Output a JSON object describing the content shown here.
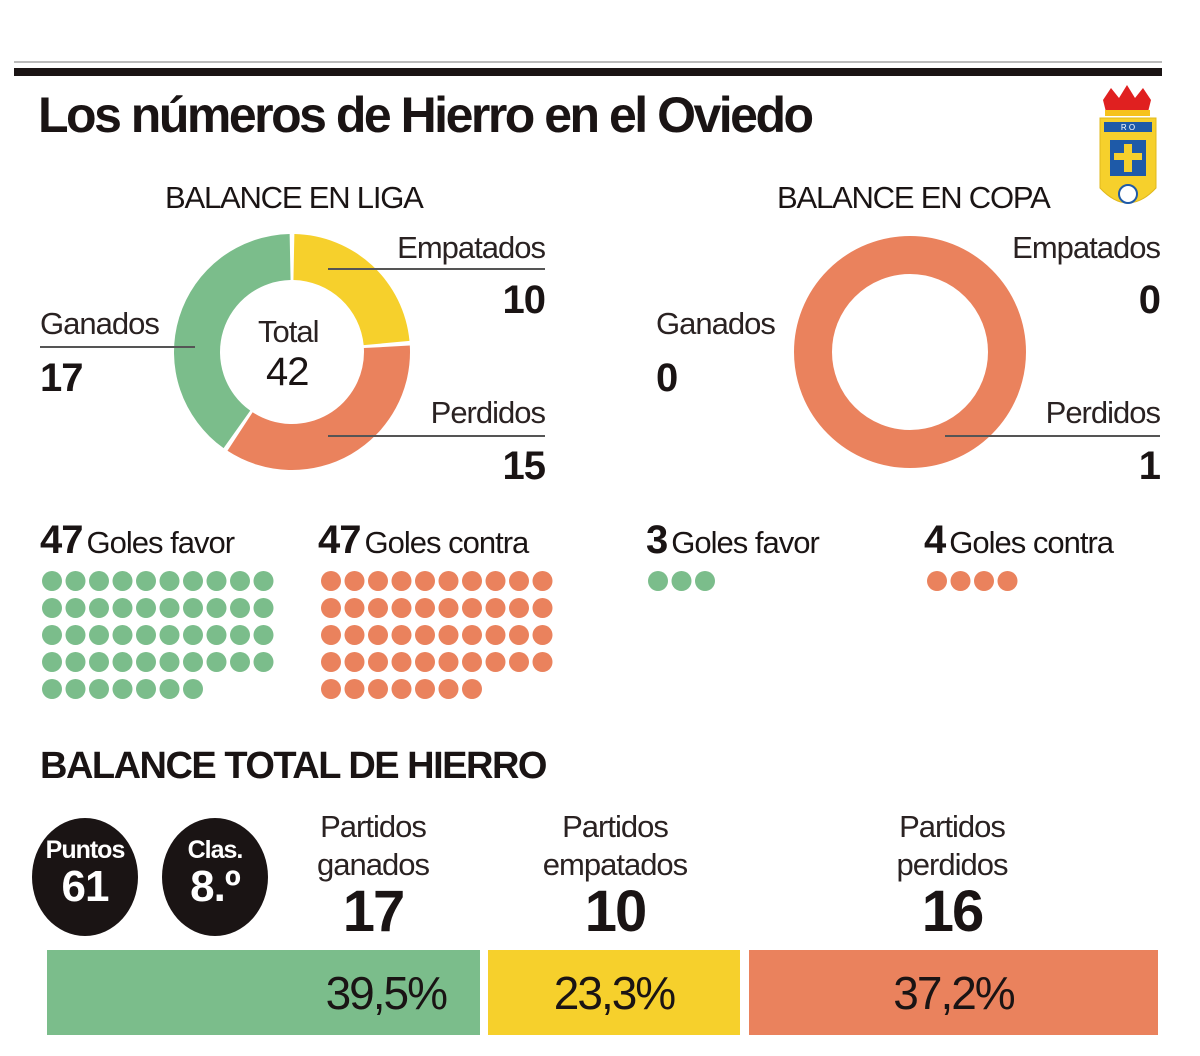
{
  "title": "Los números de Hierro en el Oviedo",
  "crest": {
    "text": "RO",
    "name": "Real Oviedo crest"
  },
  "colors": {
    "ganados": "#7bbd8b",
    "empatados": "#f6d02c",
    "perdidos": "#ea825d",
    "dark": "#1a1414"
  },
  "chart_data": [
    {
      "type": "pie",
      "title": "BALANCE EN LIGA",
      "center_label": "Total",
      "center_value": "42",
      "slices": [
        {
          "label": "Empatados",
          "value": 10
        },
        {
          "label": "Perdidos",
          "value": 15
        },
        {
          "label": "Ganados",
          "value": 17
        }
      ],
      "goles_favor": {
        "value": 47,
        "label": "Goles favor"
      },
      "goles_contra": {
        "value": 47,
        "label": "Goles contra"
      }
    },
    {
      "type": "pie",
      "title": "BALANCE EN COPA",
      "slices": [
        {
          "label": "Empatados",
          "value": 0
        },
        {
          "label": "Perdidos",
          "value": 1
        },
        {
          "label": "Ganados",
          "value": 0
        }
      ],
      "goles_favor": {
        "value": 3,
        "label": "Goles favor"
      },
      "goles_contra": {
        "value": 4,
        "label": "Goles contra"
      }
    },
    {
      "type": "bar",
      "title": "BALANCE TOTAL DE HIERRO",
      "categories": [
        "Partidos ganados",
        "Partidos empatados",
        "Partidos perdidos"
      ],
      "values": [
        17,
        10,
        16
      ],
      "percent_labels": [
        "39,5%",
        "23,3%",
        "37,2%"
      ],
      "percents": [
        39.5,
        23.3,
        37.2
      ]
    }
  ],
  "totals": {
    "puntos_label": "Puntos",
    "puntos": "61",
    "clas_label": "Clas.",
    "clas": "8.º",
    "ganados_l1": "Partidos",
    "ganados_l2": "ganados",
    "empatados_l1": "Partidos",
    "empatados_l2": "empatados",
    "perdidos_l1": "Partidos",
    "perdidos_l2": "perdidos"
  }
}
